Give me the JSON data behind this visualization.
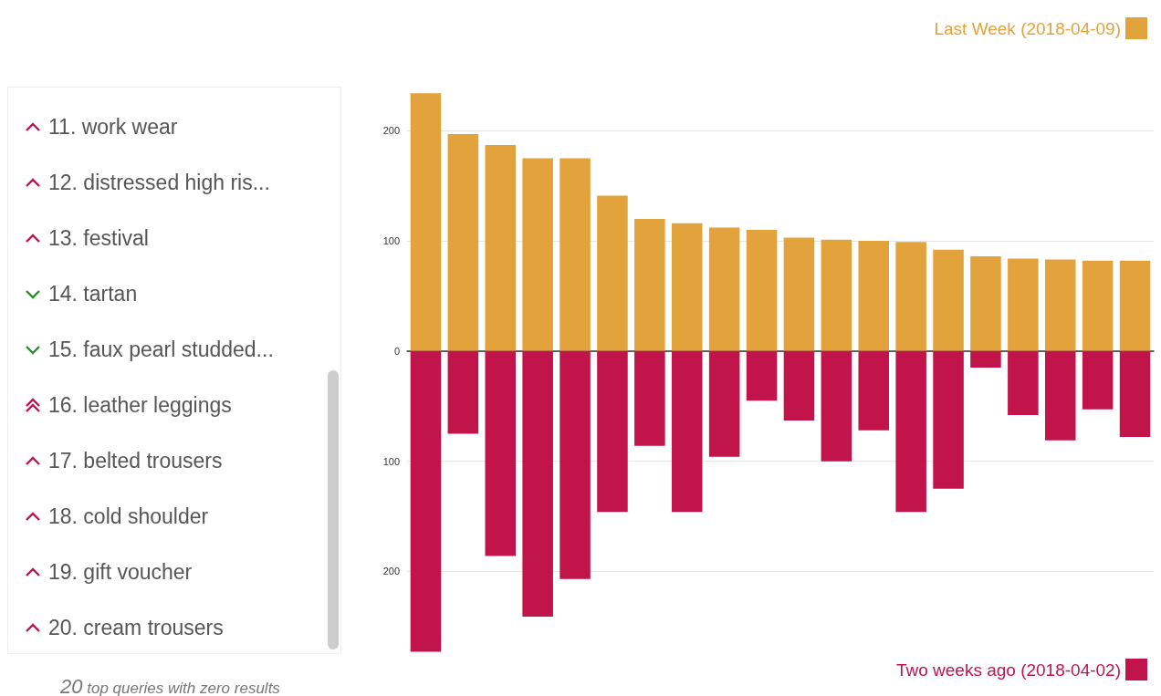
{
  "chart_data": [
    {
      "type": "other",
      "categories": [
        "11. work wear",
        "12. distressed high ris...",
        "13. festival",
        "14. tartan",
        "15. faux pearl studded...",
        "16. leather leggings",
        "17. belted trousers",
        "18. cold shoulder",
        "19. gift voucher",
        "20. cream trousers"
      ],
      "annotations": [
        "20 top queries with zero results"
      ]
    },
    {
      "type": "bar",
      "stacked": true,
      "categories": [
        null,
        null,
        null,
        null,
        null,
        null,
        null,
        null,
        null,
        null,
        null,
        null,
        null,
        null,
        null,
        null,
        null,
        null,
        null,
        null
      ],
      "series": [
        {
          "name": "Last Week (2018-04-09)",
          "color": "#e3a33c",
          "values": [
            234,
            197,
            187,
            175,
            175,
            141,
            120,
            116,
            112,
            110,
            103,
            101,
            100,
            99,
            92,
            86,
            84,
            83,
            82,
            82
          ]
        },
        {
          "name": "Two weeks ago (2018-04-02)",
          "color": "#c0144a",
          "values": [
            -273,
            -75,
            -186,
            -241,
            -207,
            -146,
            -86,
            -146,
            -96,
            -45,
            -63,
            -100,
            -72,
            -146,
            -125,
            -15,
            -58,
            -81,
            -53,
            -78
          ]
        }
      ],
      "ylim": [
        -275,
        235
      ],
      "yticks": [
        {
          "value": -200,
          "label": "200"
        },
        {
          "value": -100,
          "label": "100"
        },
        0,
        100,
        200
      ],
      "grid": "y",
      "legend": "right"
    }
  ]
}
